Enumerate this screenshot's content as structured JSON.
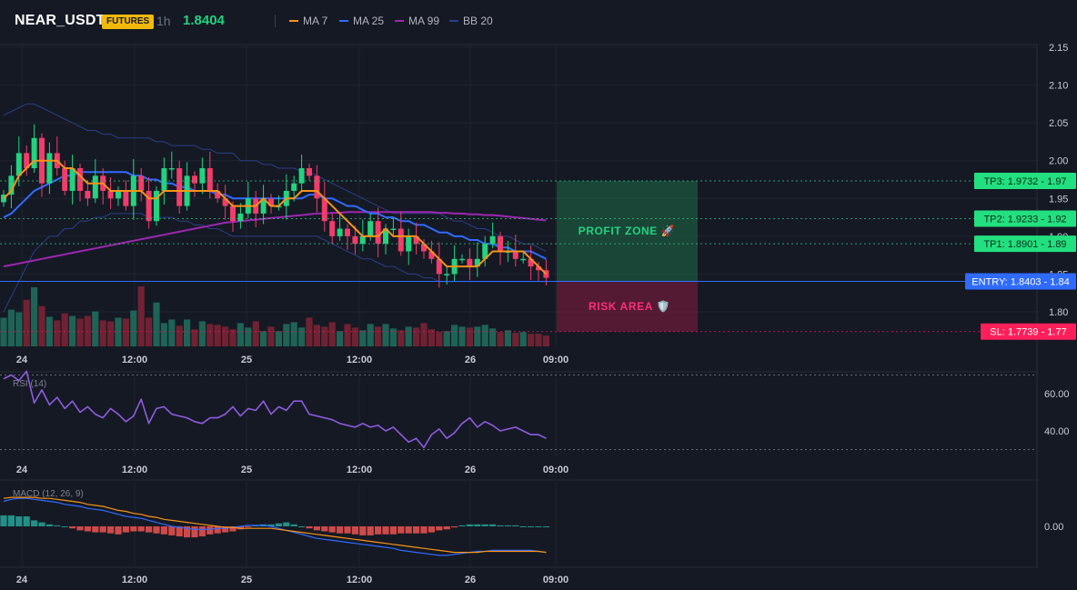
{
  "header": {
    "symbol": "NEAR_USDT",
    "badge": "FUTURES",
    "timeframe": "1h",
    "last_price": "1.8404",
    "indicators": [
      {
        "label": "MA 7",
        "color": "#f7931a"
      },
      {
        "label": "MA 25",
        "color": "#2f6bff"
      },
      {
        "label": "MA 99",
        "color": "#9c27b0"
      },
      {
        "label": "BB 20",
        "color": "#26408b"
      }
    ]
  },
  "colors": {
    "up": "#22d37f",
    "down": "#f23c6a",
    "profit": "#22c77a",
    "risk": "#e0185a",
    "entry": "#2f6bff"
  },
  "zones": {
    "profit_label": "PROFIT ZONE 🚀",
    "risk_label": "RISK AREA 🛡️"
  },
  "levels": [
    {
      "name": "TP3",
      "value": 1.9732,
      "label": "TP3: 1.9732 - 1.97",
      "kind": "tp"
    },
    {
      "name": "TP2",
      "value": 1.9233,
      "label": "TP2: 1.9233 - 1.92",
      "kind": "tp"
    },
    {
      "name": "TP1",
      "value": 1.8901,
      "label": "TP1: 1.8901 - 1.89",
      "kind": "tp"
    },
    {
      "name": "ENTRY",
      "value": 1.8403,
      "label": "ENTRY: 1.8403 - 1.84",
      "kind": "entry"
    },
    {
      "name": "SL",
      "value": 1.7739,
      "label": "SL: 1.7739 - 1.77",
      "kind": "sl"
    }
  ],
  "chart_data": [
    {
      "type": "candlestick",
      "title": "",
      "ylim": [
        1.75,
        2.15
      ],
      "yticks": [
        "2.15",
        "2.10",
        "2.05",
        "2.00",
        "1.95",
        "1.90",
        "1.85",
        "1.80"
      ],
      "xticks": [
        "24",
        "12:00",
        "25",
        "12:00",
        "26",
        "09:00"
      ],
      "candles_close": [
        1.955,
        1.98,
        2.01,
        1.99,
        2.03,
        1.97,
        2.01,
        1.99,
        1.96,
        1.99,
        1.96,
        1.95,
        1.98,
        1.96,
        1.95,
        1.96,
        1.94,
        1.98,
        1.96,
        1.92,
        1.96,
        1.99,
        1.99,
        1.94,
        1.98,
        1.97,
        1.99,
        1.96,
        1.95,
        1.94,
        1.92,
        1.93,
        1.95,
        1.93,
        1.95,
        1.94,
        1.94,
        1.96,
        1.97,
        1.99,
        1.98,
        1.95,
        1.92,
        1.9,
        1.91,
        1.9,
        1.89,
        1.9,
        1.92,
        1.89,
        1.91,
        1.91,
        1.88,
        1.9,
        1.89,
        1.88,
        1.87,
        1.85,
        1.85,
        1.87,
        1.87,
        1.86,
        1.87,
        1.89,
        1.9,
        1.88,
        1.88,
        1.87,
        1.87,
        1.86,
        1.855,
        1.845
      ],
      "series": [
        {
          "name": "MA 7",
          "values": [
            1.95,
            1.96,
            1.98,
            1.99,
            2.0,
            2.0,
            2.0,
            2.0,
            1.99,
            1.99,
            1.98,
            1.97,
            1.97,
            1.97,
            1.96,
            1.96,
            1.96,
            1.96,
            1.96,
            1.95,
            1.95,
            1.96,
            1.96,
            1.96,
            1.96,
            1.96,
            1.96,
            1.96,
            1.96,
            1.95,
            1.94,
            1.94,
            1.94,
            1.94,
            1.95,
            1.94,
            1.94,
            1.95,
            1.95,
            1.96,
            1.96,
            1.96,
            1.95,
            1.94,
            1.93,
            1.92,
            1.91,
            1.9,
            1.9,
            1.9,
            1.91,
            1.9,
            1.9,
            1.9,
            1.9,
            1.89,
            1.88,
            1.87,
            1.86,
            1.86,
            1.86,
            1.86,
            1.86,
            1.87,
            1.88,
            1.88,
            1.88,
            1.88,
            1.88,
            1.87,
            1.86,
            1.85
          ]
        },
        {
          "name": "MA 25",
          "values": [
            1.925,
            1.93,
            1.94,
            1.95,
            1.96,
            1.965,
            1.97,
            1.975,
            1.98,
            1.98,
            1.985,
            1.985,
            1.985,
            1.985,
            1.985,
            1.985,
            1.985,
            1.98,
            1.98,
            1.975,
            1.975,
            1.97,
            1.97,
            1.965,
            1.965,
            1.96,
            1.96,
            1.96,
            1.955,
            1.955,
            1.95,
            1.95,
            1.95,
            1.95,
            1.95,
            1.95,
            1.95,
            1.95,
            1.95,
            1.95,
            1.955,
            1.955,
            1.95,
            1.95,
            1.945,
            1.94,
            1.94,
            1.935,
            1.93,
            1.93,
            1.925,
            1.925,
            1.92,
            1.92,
            1.915,
            1.915,
            1.91,
            1.905,
            1.905,
            1.9,
            1.9,
            1.895,
            1.895,
            1.89,
            1.89,
            1.885,
            1.885,
            1.88,
            1.88,
            1.88,
            1.875,
            1.87
          ]
        },
        {
          "name": "MA 99",
          "values": [
            1.86,
            1.862,
            1.864,
            1.866,
            1.868,
            1.87,
            1.872,
            1.874,
            1.876,
            1.878,
            1.88,
            1.882,
            1.884,
            1.886,
            1.888,
            1.89,
            1.892,
            1.894,
            1.896,
            1.898,
            1.9,
            1.902,
            1.904,
            1.906,
            1.908,
            1.91,
            1.912,
            1.914,
            1.916,
            1.918,
            1.919,
            1.92,
            1.921,
            1.922,
            1.923,
            1.924,
            1.925,
            1.926,
            1.927,
            1.928,
            1.929,
            1.93,
            1.93,
            1.931,
            1.931,
            1.932,
            1.932,
            1.932,
            1.932,
            1.932,
            1.932,
            1.932,
            1.932,
            1.932,
            1.932,
            1.932,
            1.932,
            1.931,
            1.931,
            1.93,
            1.93,
            1.929,
            1.929,
            1.928,
            1.928,
            1.927,
            1.926,
            1.925,
            1.924,
            1.923,
            1.922,
            1.921
          ]
        },
        {
          "name": "BB 20 upper",
          "values": [
            2.06,
            2.065,
            2.07,
            2.075,
            2.075,
            2.07,
            2.065,
            2.06,
            2.055,
            2.05,
            2.045,
            2.04,
            2.04,
            2.035,
            2.035,
            2.03,
            2.03,
            2.03,
            2.03,
            2.03,
            2.025,
            2.025,
            2.02,
            2.02,
            2.02,
            2.02,
            2.015,
            2.015,
            2.01,
            2.01,
            2.01,
            2.0,
            2.0,
            2.0,
            1.995,
            1.995,
            1.99,
            1.99,
            1.99,
            1.985,
            1.985,
            1.98,
            1.975,
            1.97,
            1.965,
            1.96,
            1.955,
            1.95,
            1.945,
            1.94,
            1.935,
            1.93,
            1.93,
            1.93,
            1.93,
            1.93,
            1.93,
            1.93,
            1.925,
            1.92,
            1.92,
            1.915,
            1.91,
            1.91,
            1.905,
            1.9,
            1.9,
            1.895,
            1.89,
            1.89,
            1.885,
            1.88
          ]
        },
        {
          "name": "BB 20 lower",
          "values": [
            1.8,
            1.82,
            1.84,
            1.86,
            1.88,
            1.89,
            1.9,
            1.9,
            1.91,
            1.91,
            1.92,
            1.92,
            1.925,
            1.925,
            1.93,
            1.93,
            1.93,
            1.93,
            1.93,
            1.925,
            1.925,
            1.925,
            1.925,
            1.92,
            1.92,
            1.915,
            1.915,
            1.91,
            1.91,
            1.905,
            1.9,
            1.9,
            1.9,
            1.9,
            1.9,
            1.9,
            1.9,
            1.9,
            1.9,
            1.9,
            1.9,
            1.9,
            1.895,
            1.89,
            1.885,
            1.88,
            1.875,
            1.87,
            1.87,
            1.865,
            1.86,
            1.86,
            1.855,
            1.85,
            1.85,
            1.845,
            1.845,
            1.84,
            1.84,
            1.84,
            1.84,
            1.84,
            1.84,
            1.84,
            1.84,
            1.84,
            1.84,
            1.84,
            1.84,
            1.84,
            1.84,
            1.84
          ]
        }
      ],
      "volume": [
        32,
        41,
        38,
        52,
        66,
        45,
        33,
        29,
        37,
        34,
        31,
        34,
        39,
        29,
        28,
        32,
        31,
        40,
        67,
        32,
        49,
        26,
        30,
        23,
        30,
        19,
        28,
        25,
        24,
        22,
        19,
        26,
        21,
        28,
        17,
        22,
        17,
        25,
        27,
        21,
        32,
        24,
        22,
        27,
        17,
        25,
        21,
        18,
        25,
        22,
        25,
        20,
        18,
        22,
        21,
        26,
        19,
        16,
        17,
        24,
        22,
        21,
        22,
        24,
        20,
        16,
        18,
        15,
        16,
        14,
        14,
        12
      ]
    },
    {
      "type": "line",
      "title": "RSI (14)",
      "ylim": [
        25,
        75
      ],
      "yticks": [
        "60.00",
        "40.00"
      ],
      "xticks": [
        "24",
        "12:00",
        "25",
        "12:00",
        "26",
        "09:00"
      ],
      "series": [
        {
          "name": "RSI",
          "values": [
            68,
            70,
            67,
            72,
            55,
            62,
            54,
            58,
            52,
            56,
            50,
            53,
            49,
            47,
            52,
            49,
            45,
            48,
            57,
            44,
            52,
            53,
            49,
            48,
            47,
            45,
            44,
            47,
            47,
            49,
            53,
            48,
            52,
            51,
            56,
            49,
            53,
            51,
            56,
            56,
            49,
            48,
            47,
            46,
            44,
            43,
            42,
            44,
            42,
            43,
            40,
            42,
            38,
            34,
            36,
            31,
            38,
            41,
            36,
            39,
            44,
            47,
            42,
            45,
            43,
            40,
            41,
            42,
            40,
            38,
            38,
            36
          ]
        }
      ]
    },
    {
      "type": "bar",
      "title": "MACD (12, 26, 9)",
      "ylim": [
        -0.035,
        0.035
      ],
      "yticks": [
        "0.00"
      ],
      "xticks": [
        "24",
        "12:00",
        "25",
        "12:00",
        "26",
        "09:00"
      ],
      "series": [
        {
          "name": "histogram",
          "values": [
            0.011,
            0.011,
            0.01,
            0.01,
            0.006,
            0.004,
            0.002,
            0.001,
            0.0,
            -0.002,
            -0.004,
            -0.005,
            -0.006,
            -0.006,
            -0.007,
            -0.008,
            -0.006,
            -0.005,
            -0.005,
            -0.006,
            -0.007,
            -0.008,
            -0.009,
            -0.01,
            -0.011,
            -0.011,
            -0.01,
            -0.008,
            -0.007,
            -0.006,
            -0.005,
            -0.003,
            -0.001,
            0.001,
            0.002,
            0.002,
            0.003,
            0.004,
            0.002,
            0.0,
            -0.002,
            -0.004,
            -0.005,
            -0.006,
            -0.007,
            -0.007,
            -0.008,
            -0.009,
            -0.009,
            -0.008,
            -0.008,
            -0.008,
            -0.007,
            -0.007,
            -0.007,
            -0.007,
            -0.006,
            -0.004,
            -0.003,
            -0.001,
            0.001,
            0.002,
            0.002,
            0.002,
            0.002,
            0.001,
            0.001,
            0.001,
            0.0,
            0.0,
            0.0,
            0.0
          ]
        },
        {
          "name": "MACD",
          "values": [
            0.025,
            0.027,
            0.028,
            0.028,
            0.027,
            0.026,
            0.025,
            0.024,
            0.022,
            0.021,
            0.02,
            0.018,
            0.017,
            0.016,
            0.014,
            0.012,
            0.01,
            0.009,
            0.008,
            0.006,
            0.004,
            0.002,
            0.0,
            -0.001,
            -0.002,
            -0.003,
            -0.003,
            -0.003,
            -0.002,
            -0.002,
            -0.001,
            0.0,
            0.001,
            0.001,
            0.001,
            0.0,
            -0.002,
            -0.004,
            -0.006,
            -0.008,
            -0.01,
            -0.012,
            -0.013,
            -0.014,
            -0.015,
            -0.016,
            -0.017,
            -0.018,
            -0.019,
            -0.02,
            -0.021,
            -0.022,
            -0.024,
            -0.025,
            -0.026,
            -0.027,
            -0.028,
            -0.029,
            -0.029,
            -0.028,
            -0.027,
            -0.026,
            -0.025,
            -0.025,
            -0.024,
            -0.024,
            -0.024,
            -0.024,
            -0.024,
            -0.024,
            -0.025,
            -0.026
          ]
        },
        {
          "name": "Signal",
          "values": [
            0.028,
            0.029,
            0.029,
            0.029,
            0.029,
            0.028,
            0.028,
            0.027,
            0.026,
            0.025,
            0.024,
            0.022,
            0.021,
            0.02,
            0.018,
            0.016,
            0.015,
            0.013,
            0.012,
            0.01,
            0.009,
            0.007,
            0.006,
            0.005,
            0.004,
            0.003,
            0.002,
            0.001,
            0.0,
            -0.001,
            -0.001,
            -0.002,
            -0.002,
            -0.002,
            -0.002,
            -0.002,
            -0.003,
            -0.004,
            -0.005,
            -0.006,
            -0.007,
            -0.008,
            -0.009,
            -0.01,
            -0.011,
            -0.012,
            -0.013,
            -0.014,
            -0.015,
            -0.016,
            -0.017,
            -0.018,
            -0.019,
            -0.02,
            -0.021,
            -0.022,
            -0.023,
            -0.024,
            -0.025,
            -0.026,
            -0.026,
            -0.026,
            -0.026,
            -0.025,
            -0.025,
            -0.025,
            -0.025,
            -0.025,
            -0.025,
            -0.025,
            -0.025,
            -0.026
          ]
        }
      ]
    }
  ]
}
